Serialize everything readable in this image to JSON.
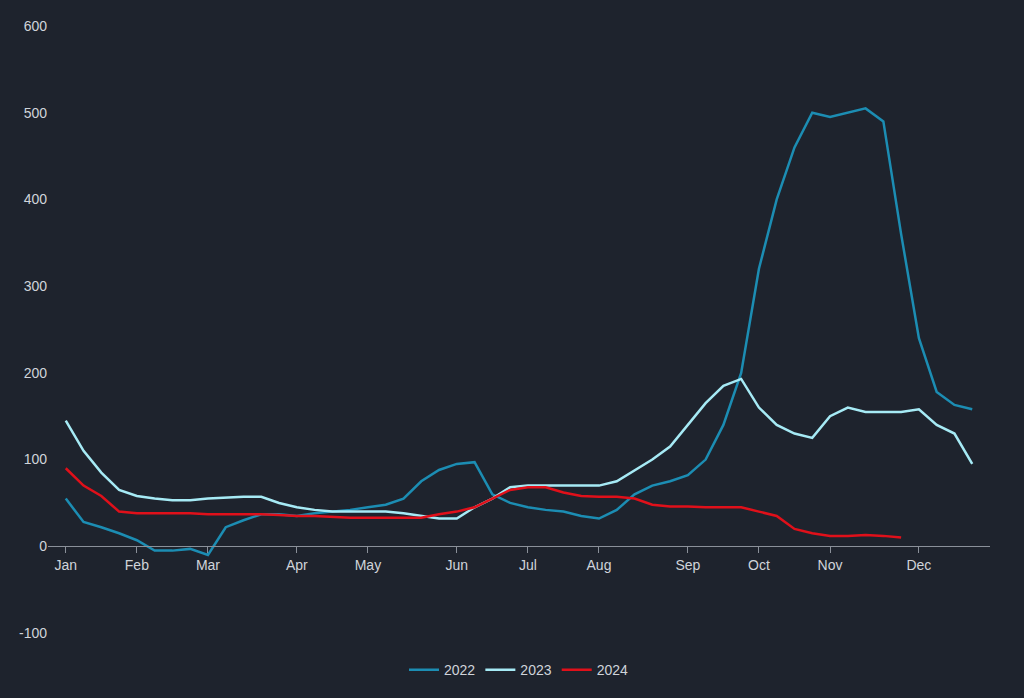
{
  "chart_data": {
    "type": "line",
    "categories": [
      "Jan",
      null,
      null,
      null,
      "Feb",
      null,
      null,
      null,
      "Mar",
      null,
      null,
      null,
      null,
      "Apr",
      null,
      null,
      null,
      "May",
      null,
      null,
      null,
      null,
      "Jun",
      null,
      null,
      null,
      "Jul",
      null,
      null,
      null,
      "Aug",
      null,
      null,
      null,
      null,
      "Sep",
      null,
      null,
      null,
      "Oct",
      null,
      null,
      null,
      "Nov",
      null,
      null,
      null,
      null,
      "Dec",
      null,
      null,
      null
    ],
    "series": [
      {
        "name": "2022",
        "color": "#1c8db3",
        "values": [
          55,
          28,
          22,
          15,
          7,
          -5,
          -5,
          -3,
          -10,
          22,
          30,
          37,
          37,
          35,
          38,
          40,
          42,
          45,
          48,
          55,
          75,
          88,
          95,
          97,
          60,
          50,
          45,
          42,
          40,
          35,
          32,
          42,
          60,
          70,
          75,
          82,
          100,
          140,
          200,
          320,
          400,
          460,
          500,
          495,
          500,
          505,
          490,
          360,
          240,
          178,
          163,
          158
        ]
      },
      {
        "name": "2023",
        "color": "#a6eaf5",
        "values": [
          145,
          110,
          85,
          65,
          58,
          55,
          53,
          53,
          55,
          56,
          57,
          57,
          50,
          45,
          42,
          40,
          40,
          40,
          40,
          38,
          35,
          32,
          32,
          45,
          55,
          68,
          70,
          70,
          70,
          70,
          70,
          75,
          88,
          100,
          115,
          140,
          165,
          185,
          193,
          160,
          140,
          130,
          125,
          150,
          160,
          155,
          155,
          155,
          158,
          140,
          130,
          95
        ]
      },
      {
        "name": "2024",
        "color": "#e0101a",
        "values": [
          90,
          70,
          58,
          40,
          38,
          38,
          38,
          38,
          37,
          37,
          37,
          37,
          36,
          35,
          35,
          34,
          33,
          33,
          33,
          33,
          33,
          37,
          40,
          45,
          55,
          65,
          68,
          68,
          62,
          58,
          57,
          57,
          55,
          48,
          46,
          46,
          45,
          45,
          45,
          40,
          35,
          20,
          15,
          12,
          12,
          13,
          12,
          10,
          null,
          null,
          null,
          null
        ]
      }
    ],
    "ylim": [
      -100,
      600
    ],
    "yticks": [
      -100,
      0,
      100,
      200,
      300,
      400,
      500,
      600
    ],
    "grid": false,
    "legend": "bottom"
  }
}
